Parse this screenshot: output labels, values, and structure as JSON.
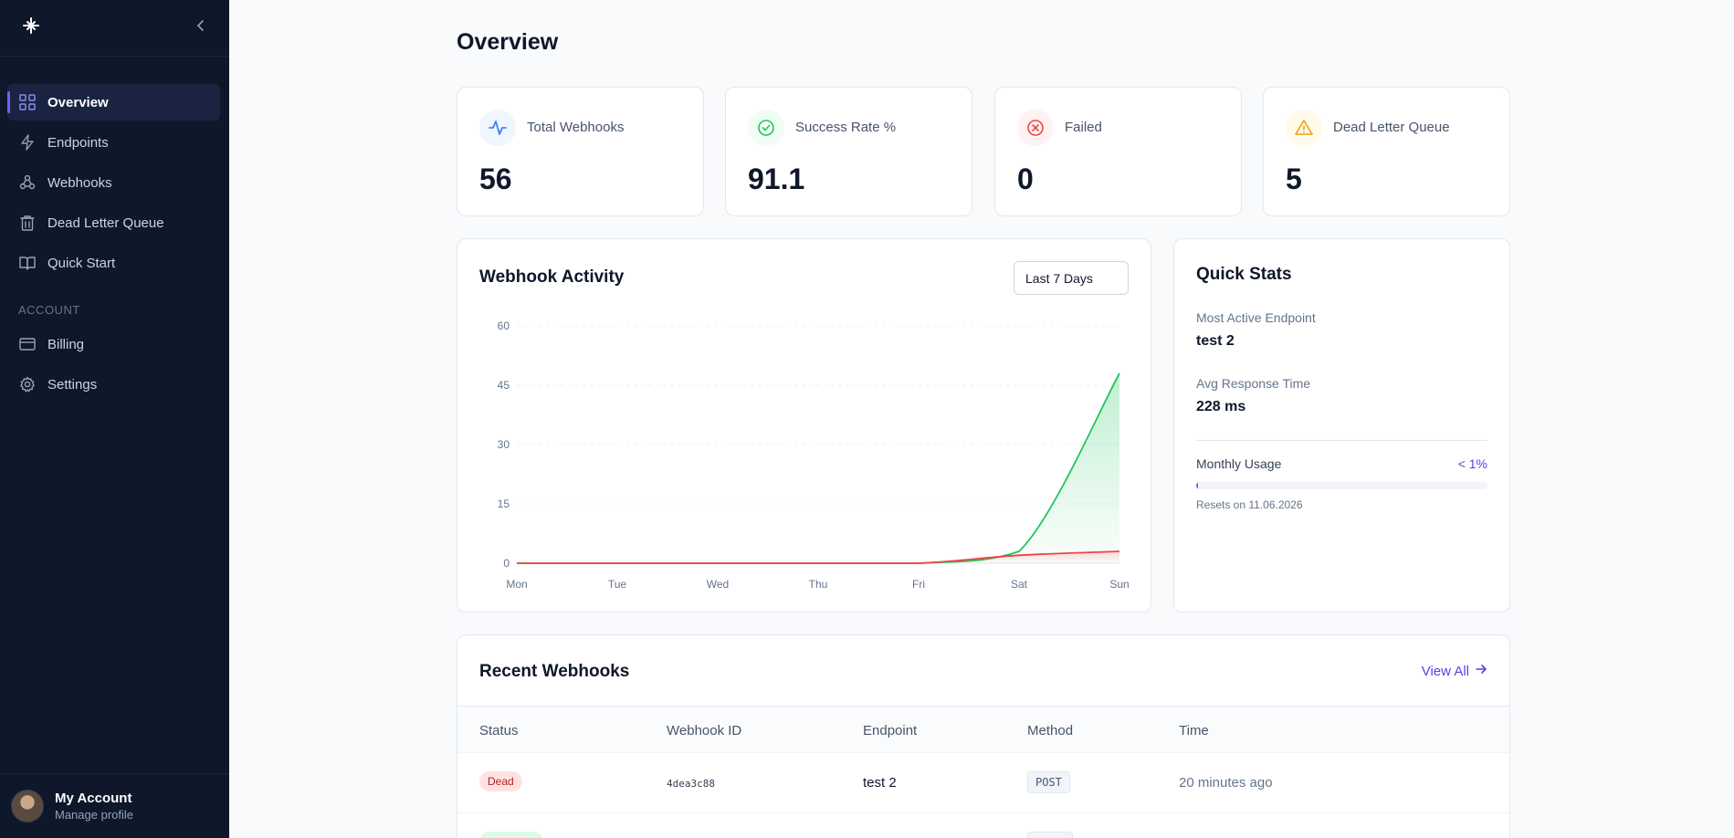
{
  "sidebar": {
    "logo_icon": "logo-icon",
    "collapse_icon": "chevron-left-icon",
    "nav": [
      {
        "label": "Overview",
        "icon": "grid-icon",
        "active": true
      },
      {
        "label": "Endpoints",
        "icon": "lightning-icon"
      },
      {
        "label": "Webhooks",
        "icon": "webhook-icon"
      },
      {
        "label": "Dead Letter Queue",
        "icon": "trash-icon"
      },
      {
        "label": "Quick Start",
        "icon": "book-icon"
      }
    ],
    "account_section": "ACCOUNT",
    "account_nav": [
      {
        "label": "Billing",
        "icon": "credit-card-icon"
      },
      {
        "label": "Settings",
        "icon": "gear-icon"
      }
    ],
    "user": {
      "name": "My Account",
      "sub": "Manage profile"
    }
  },
  "page_title": "Overview",
  "stats": [
    {
      "label": "Total Webhooks",
      "value": "56",
      "icon": "activity-icon",
      "color": "#3b82f6",
      "bg": "#eff6ff"
    },
    {
      "label": "Success Rate %",
      "value": "91.1",
      "icon": "check-circle-icon",
      "color": "#22c55e",
      "bg": "#f0fdf4"
    },
    {
      "label": "Failed",
      "value": "0",
      "icon": "x-circle-icon",
      "color": "#ef4444",
      "bg": "#fef2f2"
    },
    {
      "label": "Dead Letter Queue",
      "value": "5",
      "icon": "alert-triangle-icon",
      "color": "#f59e0b",
      "bg": "#fffbeb"
    }
  ],
  "activity": {
    "title": "Webhook Activity",
    "range": "Last 7 Days"
  },
  "chart_data": {
    "type": "area",
    "x": [
      "Mon",
      "Tue",
      "Wed",
      "Thu",
      "Fri",
      "Sat",
      "Sun"
    ],
    "ylim": [
      0,
      60
    ],
    "yticks": [
      0,
      15,
      30,
      45,
      60
    ],
    "grid": true,
    "series": [
      {
        "values": [
          0,
          0,
          0,
          0,
          0,
          3,
          48
        ],
        "color": "#22c55e"
      },
      {
        "values": [
          0,
          0,
          0,
          0,
          0,
          2,
          3
        ],
        "color": "#ef4444"
      }
    ]
  },
  "quick_stats": {
    "title": "Quick Stats",
    "most_active_label": "Most Active Endpoint",
    "most_active_value": "test 2",
    "avg_response_label": "Avg Response Time",
    "avg_response_value": "228 ms",
    "usage_label": "Monthly Usage",
    "usage_value": "< 1%",
    "usage_fraction": 0.005,
    "reset_text": "Resets on 11.06.2026"
  },
  "recent": {
    "title": "Recent Webhooks",
    "view_all": "View All",
    "columns": [
      "Status",
      "Webhook ID",
      "Endpoint",
      "Method",
      "Time"
    ],
    "rows": [
      {
        "status": "Dead",
        "id": "4dea3c88",
        "endpoint": "test 2",
        "method": "POST",
        "time": "20 minutes ago"
      }
    ]
  }
}
